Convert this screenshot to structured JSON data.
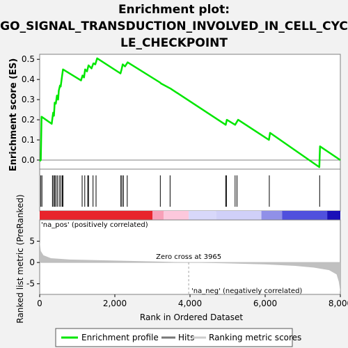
{
  "title_lines": [
    "Enrichment plot:",
    "GO_SIGNAL_TRANSDUCTION_INVOLVED_IN_CELL_CYC",
    "LE_CHECKPOINT"
  ],
  "colors": {
    "enrichment": "#00e600",
    "hits": "#000000",
    "metric_fill": "#c0c0c0",
    "pos_label": "#ff0000",
    "neg_label": "#0000cc"
  },
  "chart_data": {
    "type": "line",
    "es_panel": {
      "ylabel": "Enrichment score (ES)",
      "yticks": [
        "0.0",
        "0.1",
        "0.2",
        "0.3",
        "0.4",
        "0.5"
      ],
      "ylim": [
        -0.045,
        0.525
      ],
      "xlim": [
        0,
        8000
      ],
      "series": [
        {
          "name": "Enrichment profile",
          "points": [
            [
              0,
              -0.005
            ],
            [
              30,
              0.0
            ],
            [
              50,
              0.215
            ],
            [
              320,
              0.18
            ],
            [
              340,
              0.21
            ],
            [
              360,
              0.235
            ],
            [
              380,
              0.22
            ],
            [
              400,
              0.285
            ],
            [
              430,
              0.28
            ],
            [
              460,
              0.32
            ],
            [
              490,
              0.3
            ],
            [
              510,
              0.345
            ],
            [
              540,
              0.37
            ],
            [
              560,
              0.365
            ],
            [
              590,
              0.41
            ],
            [
              620,
              0.45
            ],
            [
              1100,
              0.395
            ],
            [
              1140,
              0.42
            ],
            [
              1180,
              0.41
            ],
            [
              1210,
              0.45
            ],
            [
              1260,
              0.44
            ],
            [
              1300,
              0.47
            ],
            [
              1380,
              0.455
            ],
            [
              1430,
              0.48
            ],
            [
              1480,
              0.475
            ],
            [
              1530,
              0.505
            ],
            [
              2150,
              0.43
            ],
            [
              2180,
              0.45
            ],
            [
              2210,
              0.475
            ],
            [
              2270,
              0.465
            ],
            [
              2340,
              0.485
            ],
            [
              3200,
              0.385
            ],
            [
              3230,
              0.38
            ],
            [
              3480,
              0.355
            ],
            [
              4950,
              0.175
            ],
            [
              4980,
              0.2
            ],
            [
              5200,
              0.175
            ],
            [
              5280,
              0.2
            ],
            [
              6100,
              0.1
            ],
            [
              6130,
              0.135
            ],
            [
              7440,
              -0.035
            ],
            [
              7460,
              0.068
            ],
            [
              8000,
              0.0
            ]
          ]
        }
      ]
    },
    "hits_panel": {
      "legend_name": "Hits",
      "positions": [
        30,
        60,
        340,
        370,
        400,
        430,
        470,
        520,
        560,
        600,
        620,
        1130,
        1200,
        1280,
        1300,
        1420,
        1500,
        2160,
        2190,
        2230,
        2330,
        3210,
        3470,
        4950,
        4970,
        5200,
        5250,
        6110,
        7450
      ]
    },
    "ranking_panel": {
      "ylabel": "Ranked list metric (PreRanked)",
      "xlabel": "Rank in Ordered Dataset",
      "yticks": [
        "-5",
        "0",
        "5"
      ],
      "ylim": [
        -7.5,
        10
      ],
      "xticks": [
        "0",
        "2,000",
        "4,000",
        "6,000",
        "8,000"
      ],
      "xtick_values": [
        0,
        2000,
        4000,
        6000,
        8000
      ],
      "zero_cross": 3965,
      "zero_cross_label": "Zero cross at 3965",
      "pos_label": "'na_pos' (positively correlated)",
      "neg_label": "'na_neg' (negatively correlated)",
      "legend_name": "Ranking metric scores",
      "profile": [
        [
          0,
          5.0
        ],
        [
          30,
          2.7
        ],
        [
          100,
          1.7
        ],
        [
          300,
          1.0
        ],
        [
          800,
          0.7
        ],
        [
          2000,
          0.45
        ],
        [
          3200,
          0.2
        ],
        [
          3965,
          0.0
        ],
        [
          5000,
          -0.2
        ],
        [
          6000,
          -0.45
        ],
        [
          6800,
          -0.8
        ],
        [
          7300,
          -1.2
        ],
        [
          7700,
          -1.8
        ],
        [
          7900,
          -2.8
        ],
        [
          7960,
          -4.5
        ],
        [
          8000,
          -7.0
        ]
      ]
    },
    "legend": [
      "Enrichment profile",
      "Hits",
      "Ranking metric scores"
    ]
  }
}
